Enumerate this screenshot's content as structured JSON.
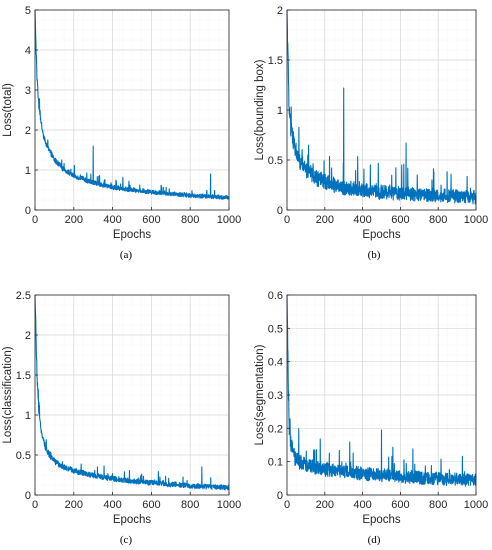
{
  "chart_data": [
    {
      "type": "line",
      "panel_label": "(a)",
      "xlabel": "Epochs",
      "ylabel": "Loss(total)",
      "xlim": [
        0,
        1000
      ],
      "ylim": [
        0,
        5
      ],
      "xticks": [
        "0",
        "200",
        "400",
        "600",
        "800",
        "1000"
      ],
      "yticks": [
        "0",
        "1",
        "2",
        "3",
        "4",
        "5"
      ],
      "grid": true,
      "line_color": "#0072bd",
      "trend": {
        "x": [
          0,
          10,
          20,
          40,
          60,
          100,
          150,
          200,
          300,
          400,
          500,
          600,
          700,
          800,
          900,
          1000
        ],
        "y": [
          5.0,
          3.3,
          2.6,
          1.9,
          1.6,
          1.25,
          1.0,
          0.85,
          0.68,
          0.56,
          0.5,
          0.45,
          0.4,
          0.36,
          0.33,
          0.3
        ]
      },
      "noise_amplitude": [
        0.2,
        0.15
      ],
      "spikes": [
        {
          "x": 300,
          "y": 1.6
        },
        {
          "x": 905,
          "y": 0.9
        }
      ]
    },
    {
      "type": "line",
      "panel_label": "(b)",
      "xlabel": "Epochs",
      "ylabel": "Loss(bounding box)",
      "xlim": [
        0,
        1000
      ],
      "ylim": [
        0,
        2
      ],
      "xticks": [
        "0",
        "200",
        "400",
        "600",
        "800",
        "1000"
      ],
      "yticks": [
        "0",
        "0.5",
        "1",
        "1.5",
        "2"
      ],
      "grid": true,
      "line_color": "#0072bd",
      "trend": {
        "x": [
          0,
          10,
          20,
          40,
          60,
          100,
          150,
          200,
          300,
          400,
          500,
          600,
          700,
          800,
          900,
          1000
        ],
        "y": [
          2.0,
          1.05,
          0.8,
          0.62,
          0.5,
          0.4,
          0.32,
          0.27,
          0.22,
          0.19,
          0.17,
          0.16,
          0.15,
          0.14,
          0.13,
          0.12
        ]
      },
      "noise_amplitude": [
        0.25,
        0.2
      ],
      "spikes": [
        {
          "x": 300,
          "y": 1.22
        },
        {
          "x": 630,
          "y": 0.67
        }
      ]
    },
    {
      "type": "line",
      "panel_label": "(c)",
      "xlabel": "Epochs",
      "ylabel": "Loss(classification)",
      "xlim": [
        0,
        1000
      ],
      "ylim": [
        0,
        2.5
      ],
      "xticks": [
        "0",
        "200",
        "400",
        "600",
        "800",
        "1000"
      ],
      "yticks": [
        "0",
        "0.5",
        "1",
        "1.5",
        "2",
        "2.5"
      ],
      "grid": true,
      "line_color": "#0072bd",
      "trend": {
        "x": [
          0,
          10,
          20,
          40,
          60,
          100,
          150,
          200,
          300,
          400,
          500,
          600,
          700,
          800,
          900,
          1000
        ],
        "y": [
          2.5,
          1.5,
          1.0,
          0.7,
          0.55,
          0.42,
          0.34,
          0.3,
          0.24,
          0.2,
          0.17,
          0.15,
          0.13,
          0.11,
          0.1,
          0.09
        ]
      },
      "noise_amplitude": [
        0.12,
        0.1
      ],
      "spikes": [
        {
          "x": 860,
          "y": 0.35
        }
      ]
    },
    {
      "type": "line",
      "panel_label": "(d)",
      "xlabel": "Epochs",
      "ylabel": "Loss(segmentation)",
      "xlim": [
        0,
        1000
      ],
      "ylim": [
        0,
        0.6
      ],
      "xticks": [
        "0",
        "200",
        "400",
        "600",
        "800",
        "1000"
      ],
      "yticks": [
        "0",
        "0.1",
        "0.2",
        "0.3",
        "0.4",
        "0.5",
        "0.6"
      ],
      "grid": true,
      "line_color": "#0072bd",
      "trend": {
        "x": [
          0,
          10,
          20,
          40,
          60,
          100,
          150,
          200,
          300,
          400,
          500,
          600,
          700,
          800,
          900,
          1000
        ],
        "y": [
          0.6,
          0.22,
          0.15,
          0.11,
          0.1,
          0.09,
          0.08,
          0.075,
          0.068,
          0.062,
          0.058,
          0.054,
          0.05,
          0.047,
          0.045,
          0.043
        ]
      },
      "noise_amplitude": [
        0.07,
        0.06
      ],
      "spikes": [
        {
          "x": 500,
          "y": 0.195
        }
      ]
    }
  ]
}
